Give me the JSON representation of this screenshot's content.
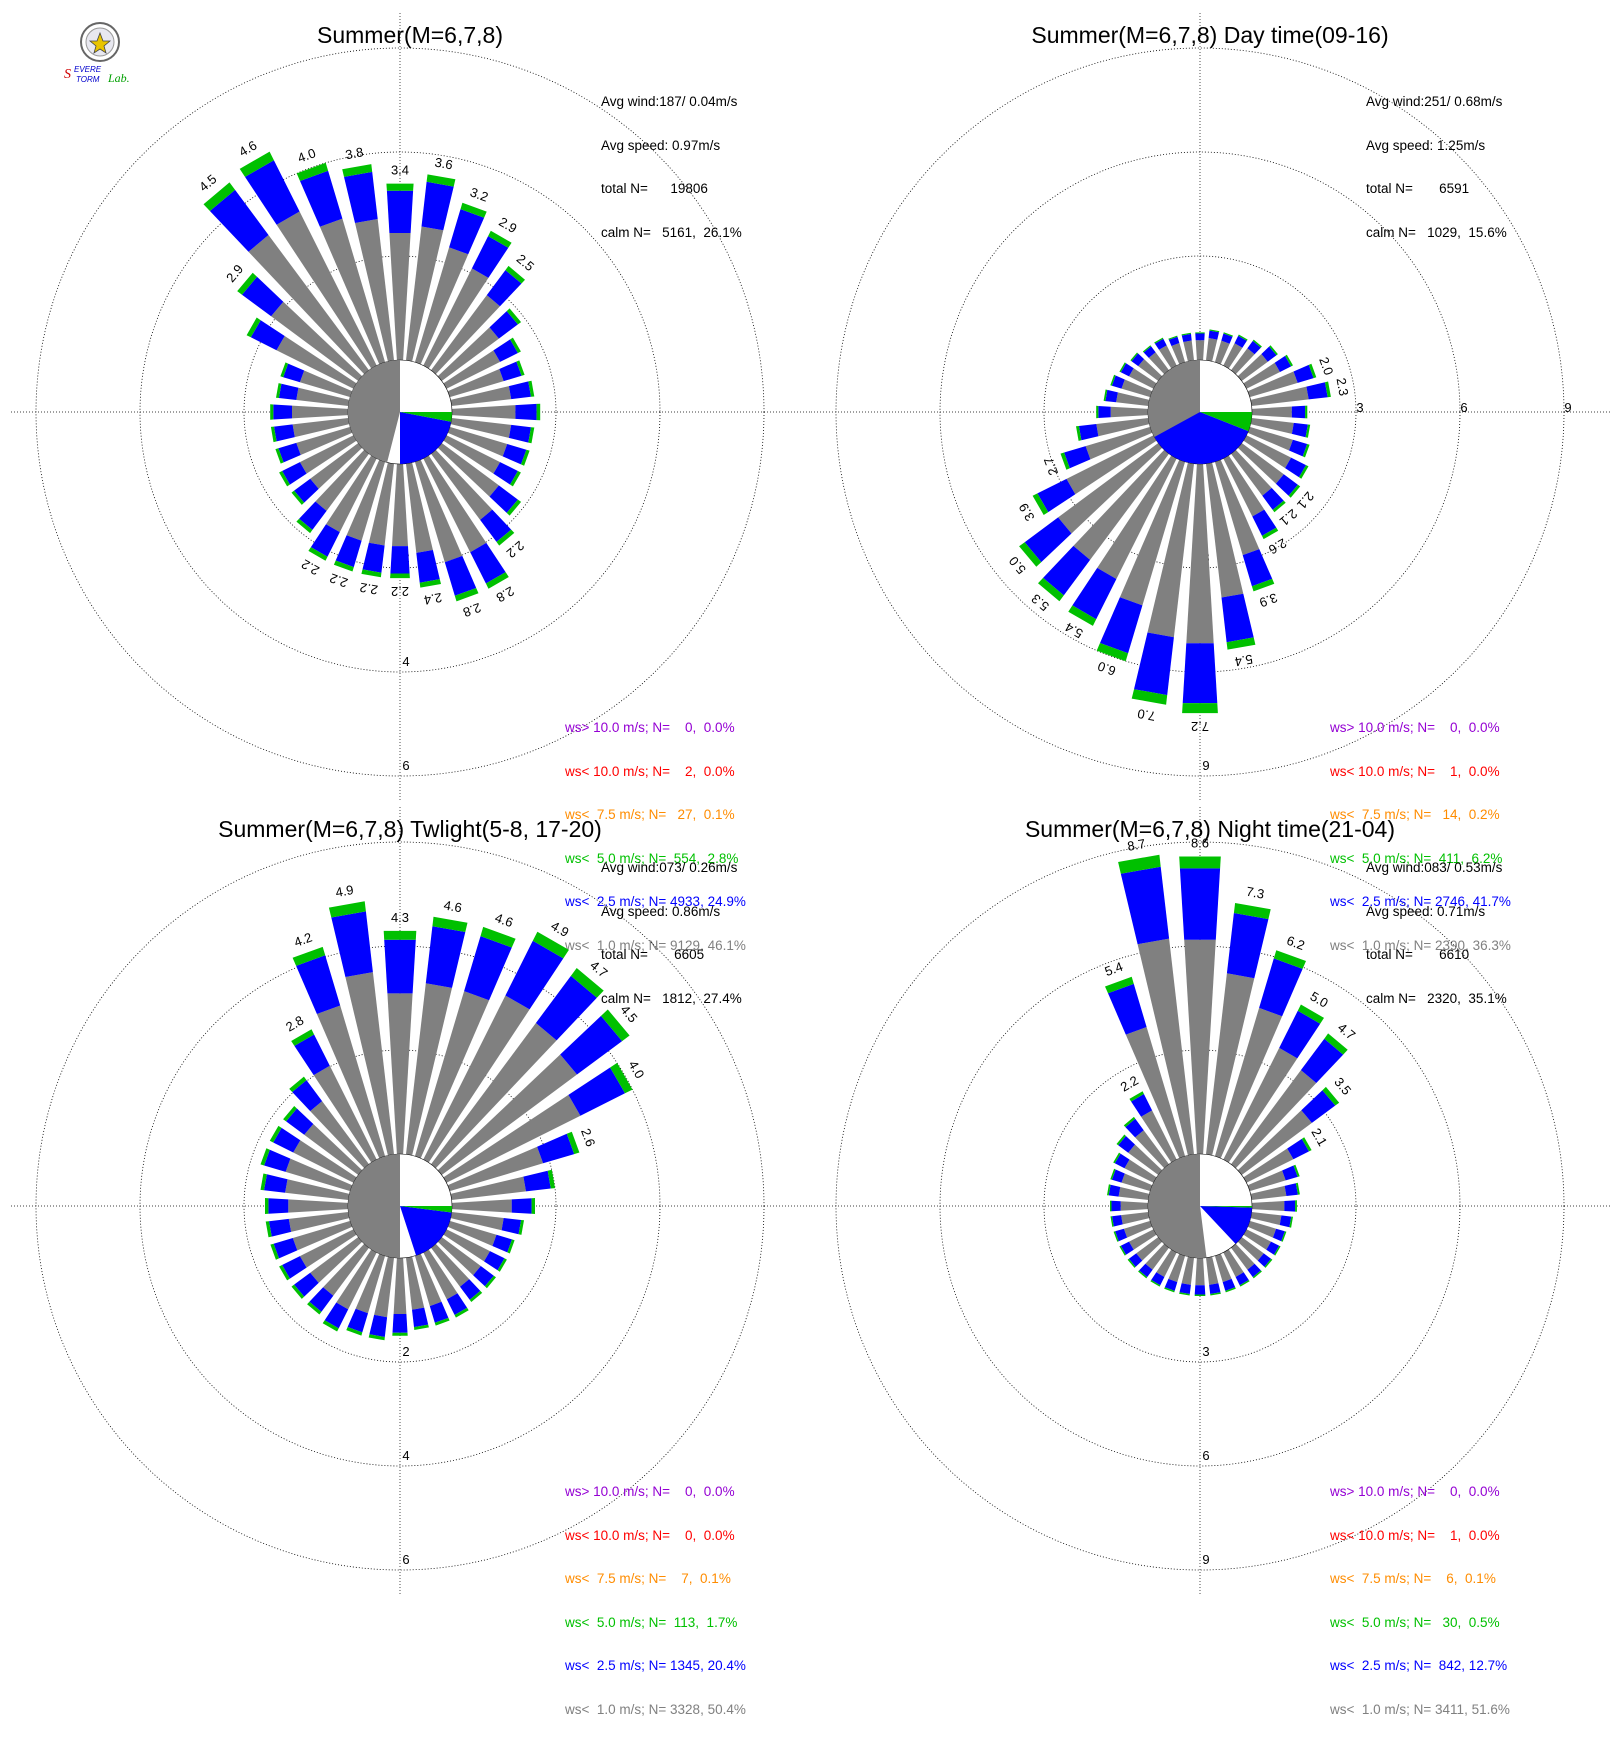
{
  "legend_colors": {
    "gt10": "#9400d3",
    "lt10": "#ff0000",
    "lt7_5": "#ff8c00",
    "lt5": "#00c000",
    "lt2_5": "#0000ff",
    "lt1": "#808080"
  },
  "chart_data": [
    {
      "type": "wind-rose",
      "title": "Summer(M=6,7,8)",
      "ring_labels": [
        "2",
        "4",
        "6"
      ],
      "ring_step": 2,
      "stats": {
        "avg_wind": "Avg wind:187/ 0.04m/s",
        "avg_speed": "Avg speed: 0.97m/s",
        "total": "total N=      19806",
        "calm": "calm N=   5161,  26.1%"
      },
      "calm_pie": {
        "gray": 0.46,
        "blue": 0.25,
        "green": 0.03
      },
      "sectors": [
        1.7,
        1.6,
        1.5,
        1.6,
        1.9,
        2.5,
        2.9,
        3.2,
        3.6,
        3.4,
        3.8,
        4.0,
        4.6,
        4.5,
        2.9,
        2.3,
        1.4,
        1.4,
        1.5,
        1.5,
        1.5,
        1.6,
        1.6,
        1.9,
        2.2,
        2.2,
        2.2,
        2.2,
        2.4,
        2.8,
        2.8,
        2.2,
        1.9,
        1.6,
        1.6,
        1.6
      ],
      "sector_labels": {
        "5": "2.5",
        "6": "2.9",
        "7": "3.2",
        "8": "3.6",
        "9": "3.4",
        "10": "3.8",
        "11": "4.0",
        "12": "4.6",
        "13": "4.5",
        "14": "2.9",
        "24": "2.2",
        "25": "2.2",
        "26": "2.2",
        "27": "2.2",
        "28": "2.4",
        "29": "2.8",
        "30": "2.8",
        "31": "2.2"
      },
      "legend": [
        "ws> 10.0 m/s; N=    0,  0.0%",
        "ws< 10.0 m/s; N=    2,  0.0%",
        "ws<  7.5 m/s; N=   27,  0.1%",
        "ws<  5.0 m/s; N=  554,  2.8%",
        "ws<  2.5 m/s; N= 4933, 24.9%",
        "ws<  1.0 m/s; N= 9129, 46.1%"
      ]
    },
    {
      "type": "wind-rose",
      "title": "Summer(M=6,7,8) Day time(09-16)",
      "ring_labels": [
        "3",
        "6",
        "9"
      ],
      "ring_step": 3,
      "stats": {
        "avg_wind": "Avg wind:251/ 0.68m/s",
        "avg_speed": "Avg speed: 1.25m/s",
        "total": "total N=       6591",
        "calm": "calm N=   1029,  15.6%"
      },
      "calm_pie": {
        "gray": 0.36,
        "blue": 0.42,
        "green": 0.06
      },
      "sectors": [
        1.6,
        2.3,
        2.0,
        1.5,
        1.3,
        1.1,
        1.0,
        0.9,
        0.9,
        0.8,
        0.8,
        0.8,
        0.9,
        0.9,
        1.0,
        1.1,
        1.2,
        1.3,
        1.5,
        2.1,
        2.7,
        3.9,
        5.0,
        5.3,
        5.4,
        6.0,
        7.0,
        7.2,
        5.4,
        3.9,
        2.6,
        2.1,
        2.1,
        2.0,
        1.8,
        1.7
      ],
      "sector_labels": {
        "1": "2.3",
        "2": "2.0",
        "20": "2.7",
        "21": "3.9",
        "22": "5.0",
        "23": "5.3",
        "24": "5.4",
        "25": "6.0",
        "26": "7.0",
        "27": "7.2",
        "28": "5.4",
        "29": "3.9",
        "30": "2.6",
        "31": "2.1",
        "32": "2.1"
      },
      "legend": [
        "ws> 10.0 m/s; N=    0,  0.0%",
        "ws< 10.0 m/s; N=    1,  0.0%",
        "ws<  7.5 m/s; N=   14,  0.2%",
        "ws<  5.0 m/s; N=  411,  6.2%",
        "ws<  2.5 m/s; N= 2746, 41.7%",
        "ws<  1.0 m/s; N= 2390, 36.3%"
      ]
    },
    {
      "type": "wind-rose",
      "title": "Summer(M=6,7,8) Twlight(5-8, 17-20)",
      "ring_labels": [
        "2",
        "4",
        "6"
      ],
      "ring_step": 2,
      "stats": {
        "avg_wind": "Avg wind:073/ 0.26m/s",
        "avg_speed": "Avg speed: 0.86m/s",
        "total": "total N=       6605",
        "calm": "calm N=   1812,  27.4%"
      },
      "calm_pie": {
        "gray": 0.5,
        "blue": 0.2,
        "green": 0.02
      },
      "sectors": [
        1.6,
        2.0,
        2.6,
        4.0,
        4.5,
        4.7,
        4.9,
        4.6,
        4.6,
        4.3,
        4.9,
        4.2,
        2.8,
        2.1,
        1.8,
        1.8,
        1.8,
        1.7,
        1.6,
        1.6,
        1.6,
        1.6,
        1.6,
        1.6,
        1.7,
        1.6,
        1.6,
        1.5,
        1.4,
        1.4,
        1.4,
        1.3,
        1.3,
        1.3,
        1.3,
        1.4
      ],
      "sector_labels": {
        "2": "2.6",
        "3": "4.0",
        "4": "4.5",
        "5": "4.7",
        "6": "4.9",
        "7": "4.6",
        "8": "4.6",
        "9": "4.3",
        "10": "4.9",
        "11": "4.2",
        "12": "2.8"
      },
      "legend": [
        "ws> 10.0 m/s; N=    0,  0.0%",
        "ws< 10.0 m/s; N=    0,  0.0%",
        "ws<  7.5 m/s; N=    7,  0.1%",
        "ws<  5.0 m/s; N=  113,  1.7%",
        "ws<  2.5 m/s; N= 1345, 20.4%",
        "ws<  1.0 m/s; N= 3328, 50.4%"
      ]
    },
    {
      "type": "wind-rose",
      "title": "Summer(M=6,7,8) Night time(21-04)",
      "ring_labels": [
        "3",
        "6",
        "9"
      ],
      "ring_step": 3,
      "stats": {
        "avg_wind": "Avg wind:083/ 0.53m/s",
        "avg_speed": "Avg speed: 0.71m/s",
        "total": "total N=       6610",
        "calm": "calm N=   2320,  35.1%"
      },
      "calm_pie": {
        "gray": 0.52,
        "blue": 0.13,
        "green": 0.005
      },
      "sectors": [
        1.3,
        1.4,
        1.5,
        2.1,
        3.5,
        4.7,
        5.0,
        6.2,
        7.3,
        8.6,
        8.7,
        5.4,
        2.2,
        1.7,
        1.5,
        1.3,
        1.2,
        1.2,
        1.1,
        1.1,
        1.1,
        1.1,
        1.1,
        1.1,
        1.1,
        1.1,
        1.1,
        1.1,
        1.1,
        1.1,
        1.1,
        1.1,
        1.1,
        1.1,
        1.1,
        1.2
      ],
      "sector_labels": {
        "3": "2.1",
        "4": "3.5",
        "5": "4.7",
        "6": "5.0",
        "7": "6.2",
        "8": "7.3",
        "9": "8.6",
        "10": "8.7",
        "11": "5.4",
        "12": "2.2"
      },
      "legend": [
        "ws> 10.0 m/s; N=    0,  0.0%",
        "ws< 10.0 m/s; N=    1,  0.0%",
        "ws<  7.5 m/s; N=    6,  0.1%",
        "ws<  5.0 m/s; N=   30,  0.5%",
        "ws<  2.5 m/s; N=  842, 12.7%",
        "ws<  1.0 m/s; N= 3411, 51.6%"
      ]
    }
  ]
}
